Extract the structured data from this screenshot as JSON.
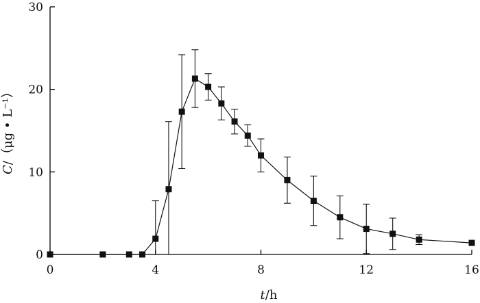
{
  "chart_data": {
    "type": "line",
    "title": "",
    "xlabel": {
      "var": "t",
      "unit": "/h"
    },
    "ylabel": {
      "var": "C",
      "unit": "/（μg • L⁻¹）"
    },
    "xlim": [
      0,
      16
    ],
    "ylim": [
      0,
      30
    ],
    "xticks": [
      0,
      4,
      8,
      12,
      16
    ],
    "yticks": [
      0,
      10,
      20,
      30
    ],
    "grid": false,
    "marker": "square",
    "series": [
      {
        "x": [
          0,
          2,
          3,
          3.5,
          4,
          4.5,
          5,
          5.5,
          6,
          6.5,
          7,
          7.5,
          8,
          9,
          10,
          11,
          12,
          13,
          14,
          16
        ],
        "y": [
          0,
          0,
          0,
          0,
          1.9,
          7.9,
          17.3,
          21.3,
          20.3,
          18.3,
          16.1,
          14.4,
          12.0,
          9.0,
          6.5,
          4.5,
          3.1,
          2.5,
          1.8,
          1.4
        ],
        "err": [
          0,
          0,
          0,
          0,
          4.6,
          8.2,
          6.9,
          3.5,
          1.6,
          2.0,
          1.5,
          1.3,
          2.0,
          2.8,
          3.0,
          2.6,
          3.0,
          1.9,
          0.6,
          0
        ]
      }
    ]
  }
}
